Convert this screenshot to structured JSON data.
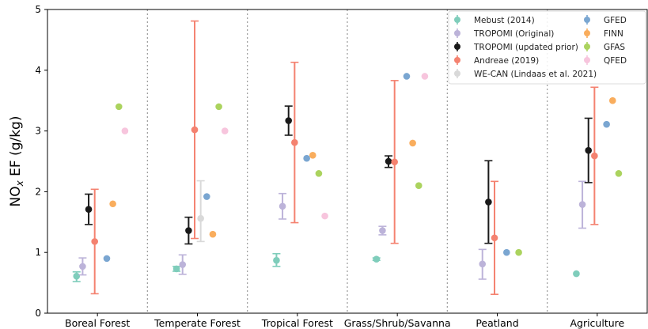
{
  "chart_data": {
    "type": "scatter",
    "ylabel_main": "NO",
    "ylabel_sub": "x",
    "ylabel_rest": " EF (g/kg)",
    "ylim": [
      0,
      5
    ],
    "yticks": [
      0,
      1,
      2,
      3,
      4,
      5
    ],
    "categories": [
      "Boreal Forest",
      "Temperate Forest",
      "Tropical Forest",
      "Grass/Shrub/Savanna",
      "Peatland",
      "Agriculture"
    ],
    "legend_placement": "top-right",
    "grid": false,
    "series": [
      {
        "name": "Mebust (2014)",
        "color": "#7fcdbb",
        "offset": -0.38,
        "points": [
          {
            "cat": 0,
            "y": 0.61,
            "err_low": 0.52,
            "err_high": 0.68
          },
          {
            "cat": 1,
            "y": 0.73,
            "err_low": 0.69,
            "err_high": 0.77
          },
          {
            "cat": 2,
            "y": 0.87,
            "err_low": 0.77,
            "err_high": 0.98
          },
          {
            "cat": 3,
            "y": 0.89,
            "err_low": 0.87,
            "err_high": 0.91
          },
          {
            "cat": 5,
            "y": 0.65,
            "err_low": null,
            "err_high": null
          }
        ]
      },
      {
        "name": "TROPOMI (Original)",
        "color": "#bcb3d9",
        "offset": -0.27,
        "points": [
          {
            "cat": 0,
            "y": 0.77,
            "err_low": 0.63,
            "err_high": 0.91
          },
          {
            "cat": 1,
            "y": 0.8,
            "err_low": 0.64,
            "err_high": 0.96
          },
          {
            "cat": 2,
            "y": 1.76,
            "err_low": 1.55,
            "err_high": 1.97
          },
          {
            "cat": 3,
            "y": 1.36,
            "err_low": 1.29,
            "err_high": 1.43
          },
          {
            "cat": 4,
            "y": 0.81,
            "err_low": 0.56,
            "err_high": 1.05
          },
          {
            "cat": 5,
            "y": 1.79,
            "err_low": 1.4,
            "err_high": 2.17
          }
        ]
      },
      {
        "name": "TROPOMI (updated prior)",
        "color": "#1a1a1a",
        "offset": -0.16,
        "points": [
          {
            "cat": 0,
            "y": 1.71,
            "err_low": 1.46,
            "err_high": 1.96
          },
          {
            "cat": 1,
            "y": 1.36,
            "err_low": 1.14,
            "err_high": 1.58
          },
          {
            "cat": 2,
            "y": 3.17,
            "err_low": 2.93,
            "err_high": 3.41
          },
          {
            "cat": 3,
            "y": 2.5,
            "err_low": 2.4,
            "err_high": 2.59
          },
          {
            "cat": 4,
            "y": 1.83,
            "err_low": 1.15,
            "err_high": 2.51
          },
          {
            "cat": 5,
            "y": 2.68,
            "err_low": 2.15,
            "err_high": 3.21
          }
        ]
      },
      {
        "name": "Andreae (2019)",
        "color": "#f48270",
        "offset": -0.05,
        "points": [
          {
            "cat": 0,
            "y": 1.18,
            "err_low": 0.32,
            "err_high": 2.04
          },
          {
            "cat": 1,
            "y": 3.02,
            "err_low": 1.23,
            "err_high": 4.81
          },
          {
            "cat": 2,
            "y": 2.81,
            "err_low": 1.49,
            "err_high": 4.13
          },
          {
            "cat": 3,
            "y": 2.49,
            "err_low": 1.15,
            "err_high": 3.83
          },
          {
            "cat": 4,
            "y": 1.24,
            "err_low": 0.31,
            "err_high": 2.17
          },
          {
            "cat": 5,
            "y": 2.59,
            "err_low": 1.46,
            "err_high": 3.72
          }
        ]
      },
      {
        "name": "WE-CAN (Lindaas et al. 2021)",
        "color": "#d9d9d9",
        "offset": 0.06,
        "points": [
          {
            "cat": 1,
            "y": 1.56,
            "err_low": 1.18,
            "err_high": 2.18
          }
        ]
      },
      {
        "name": "GFED",
        "color": "#7aa6d1",
        "offset": 0.17,
        "points": [
          {
            "cat": 0,
            "y": 0.9,
            "err_low": null,
            "err_high": null
          },
          {
            "cat": 1,
            "y": 1.92,
            "err_low": null,
            "err_high": null
          },
          {
            "cat": 2,
            "y": 2.55,
            "err_low": null,
            "err_high": null
          },
          {
            "cat": 3,
            "y": 3.9,
            "err_low": null,
            "err_high": null
          },
          {
            "cat": 4,
            "y": 1.0,
            "err_low": null,
            "err_high": null
          },
          {
            "cat": 5,
            "y": 3.11,
            "err_low": null,
            "err_high": null
          }
        ]
      },
      {
        "name": "FINN",
        "color": "#f9ad5d",
        "offset": 0.28,
        "points": [
          {
            "cat": 0,
            "y": 1.8,
            "err_low": null,
            "err_high": null
          },
          {
            "cat": 1,
            "y": 1.3,
            "err_low": null,
            "err_high": null
          },
          {
            "cat": 2,
            "y": 2.6,
            "err_low": null,
            "err_high": null
          },
          {
            "cat": 3,
            "y": 2.8,
            "err_low": null,
            "err_high": null
          },
          {
            "cat": 5,
            "y": 3.5,
            "err_low": null,
            "err_high": null
          }
        ]
      },
      {
        "name": "GFAS",
        "color": "#abd35e",
        "offset": 0.39,
        "points": [
          {
            "cat": 0,
            "y": 3.4,
            "err_low": null,
            "err_high": null
          },
          {
            "cat": 1,
            "y": 3.4,
            "err_low": null,
            "err_high": null
          },
          {
            "cat": 2,
            "y": 2.3,
            "err_low": null,
            "err_high": null
          },
          {
            "cat": 3,
            "y": 2.1,
            "err_low": null,
            "err_high": null
          },
          {
            "cat": 4,
            "y": 1.0,
            "err_low": null,
            "err_high": null
          },
          {
            "cat": 5,
            "y": 2.3,
            "err_low": null,
            "err_high": null
          }
        ]
      },
      {
        "name": "QFED",
        "color": "#f7c5dd",
        "offset": 0.5,
        "points": [
          {
            "cat": 0,
            "y": 3.0,
            "err_low": null,
            "err_high": null
          },
          {
            "cat": 1,
            "y": 3.0,
            "err_low": null,
            "err_high": null
          },
          {
            "cat": 2,
            "y": 1.6,
            "err_low": null,
            "err_high": null
          },
          {
            "cat": 3,
            "y": 3.9,
            "err_low": null,
            "err_high": null
          }
        ]
      }
    ]
  }
}
